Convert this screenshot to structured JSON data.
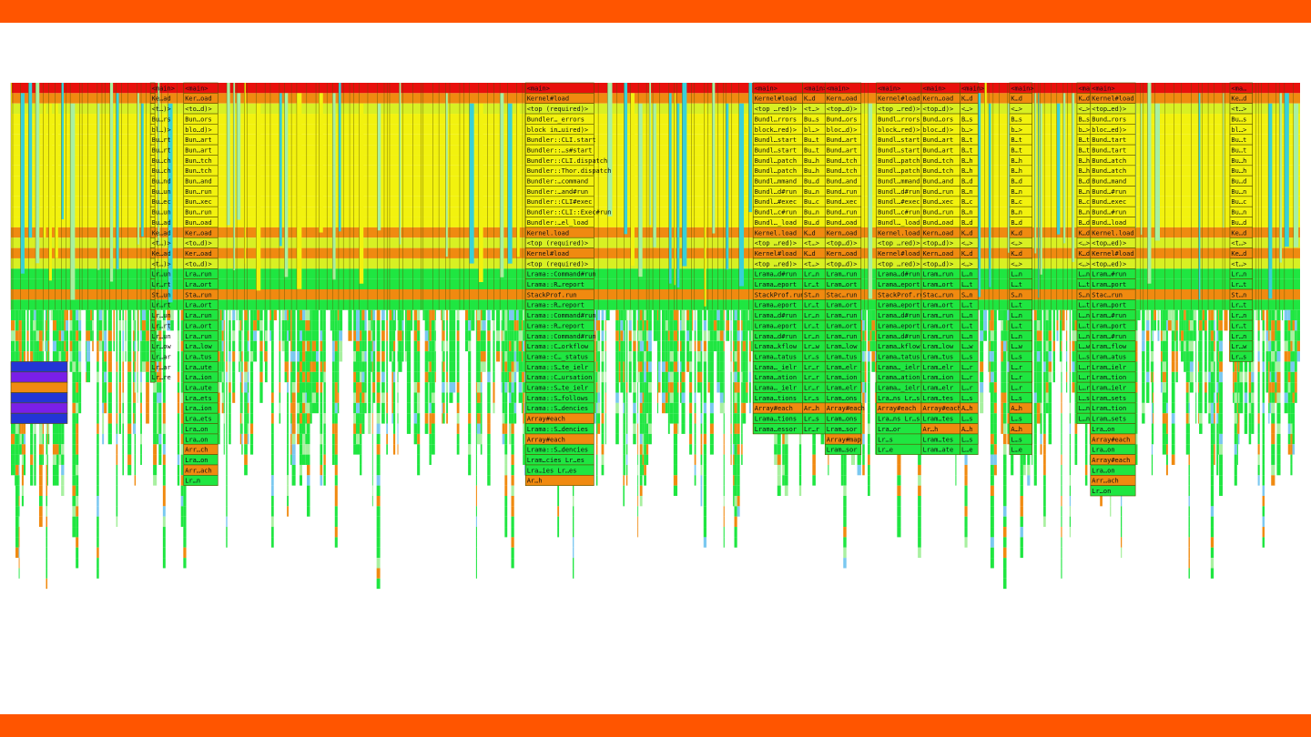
{
  "theme": {
    "accent": "#ff5500",
    "background": "#ffffff",
    "colors": {
      "red": "#e8100c",
      "orange": "#f08a10",
      "yellow": "#f2f20e",
      "lime": "#d8f023",
      "green": "#1fe641",
      "lightgreen": "#a8f0a0",
      "blue": "#2335d6",
      "violet": "#7a1fe8",
      "cyan": "#38d0d8",
      "skyblue": "#7ac8f0",
      "stroke": "#5a5000"
    }
  },
  "chart_data": {
    "type": "flame",
    "orientation": "icicle",
    "row_labels": [
      "<main>",
      "Kernel#load",
      "<top (required)>",
      "Bundler::…errors",
      "block in…uired)>",
      "Bundler::CLI.start",
      "Bundler::…s#start",
      "Bundler::CLI.dispatch",
      "Bundler::Thor.dispatch",
      "Bundler::…command",
      "Bundler::…and#run",
      "Bundler::CLI#exec",
      "Bundler::CLI::Exec#run",
      "Bundler::…el_load",
      "Kernel.load",
      "<top (required)>",
      "Kernel#load",
      "<top (required)>",
      "Lrama::Command#run",
      "Lrama::R…report",
      "StackProf.run",
      "Lrama::R…report",
      "Lrama::Command#run",
      "Lrama::R…report",
      "Lrama::Command#run",
      "Lrama::C…orkflow",
      "Lrama::C…_status",
      "Lrama::S…te_ielr",
      "Lrama::C…ursation",
      "Lrama::S…te_ielr",
      "Lrama::S…follows",
      "Lrama::S…dencies",
      "Array#each",
      "Lrama::S…dencies",
      "Lrama::S…dencies",
      "Lram…cies Lr…es",
      "Lra…ies Lr…es",
      "Ar…h"
    ],
    "segments": [
      {
        "x": [
          0.155,
          0.16
        ],
        "labels": [
          "<main>",
          "Ke…ad",
          "<t…)>",
          "Bu…rs",
          "bl…)>",
          "Bu…rt",
          "Bu…rt",
          "Bu…ch",
          "Bu…ch",
          "Bu…nd",
          "Bu…un",
          "Bu…ec",
          "Bu…un",
          "Bu…ad",
          "Ke…ad",
          "<t…)>",
          "Ke…ad",
          "<t…)>",
          "Lr…un",
          "Lr…rt",
          "St…un",
          "Lr…rt",
          "Lr…un",
          "Lr…rt",
          "Lr…un",
          "Lr…ow",
          "Lr…ar",
          "Lr…ar",
          "Lr…re"
        ]
      },
      {
        "x": [
          0.192,
          0.23
        ],
        "labels": [
          "<main>",
          "Ker…oad",
          "<to…d)>",
          "Bun…ors",
          "blo…d)>",
          "Bun…art",
          "Bun…art",
          "Bun…tch",
          "Bun…tch",
          "Bun…and",
          "Bun…run",
          "Bun…xec",
          "Bun…run",
          "Bun…oad",
          "Ker…oad",
          "<to…d)>",
          "Ker…oad",
          "<to…d)>",
          "Lra…run",
          "Lra…ort",
          "Sta…run",
          "Lra…ort",
          "Lra…run",
          "Lra…ort",
          "Lra…run",
          "Lra…low",
          "Lra…tus",
          "Lra…ute",
          "Lra…ion",
          "Lra…ute",
          "Lra…ets",
          "Lra…ion",
          "Lra…ets",
          "Lra…on",
          "Lra…on",
          "Arr…ch",
          "Lra…on",
          "Arr…ach",
          "Lr…n"
        ]
      },
      {
        "x": [
          0.572,
          0.648
        ],
        "labels": [
          "<main>",
          "Kernel#load",
          "<top (required)>",
          "Bundler…_errors",
          "block in…uired)>",
          "Bundler::CLI.start",
          "Bundler::…s#start",
          "Bundler::CLI.dispatch",
          "Bundler::Thor.dispatch",
          "Bundler:…command",
          "Bundler:…and#run",
          "Bundler::CLI#exec",
          "Bundler::CLI::Exec#run",
          "Bundler:…el_load",
          "Kernel.load",
          "<top (required)>",
          "Kernel#load",
          "<top (required)>",
          "Lrama::Command#run",
          "Lrama::R…report",
          "StackProf.run",
          "Lrama::R…report",
          "Lrama::Command#run",
          "Lrama::R…report",
          "Lrama::Command#run",
          "Lrama::C…orkflow",
          "Lrama::C…_status",
          "Lrama::S…te_ielr",
          "Lrama::C…ursation",
          "Lrama::S…te_ielr",
          "Lrama::S…follows",
          "Lrama::S…dencies",
          "Array#each",
          "Lrama::S…dencies",
          "Array#each",
          "Lrama::S…dencies",
          "Lram…cies Lr…es",
          "Lra…ies Lr…es",
          "Ar…h"
        ]
      },
      {
        "x": [
          0.825,
          0.88
        ],
        "labels": [
          "<main>",
          "Kernel#load",
          "<top …red)>",
          "Bundl…rrors",
          "block…red)>",
          "Bundl…start",
          "Bundl…start",
          "Bundl…patch",
          "Bundl…patch",
          "Bundl…mmand",
          "Bundl…d#run",
          "Bundl…#exec",
          "Bundl…c#run",
          "Bundl…_load",
          "Kernel.load",
          "<top …red)>",
          "Kernel#load",
          "<top …red)>",
          "Lrama…d#run",
          "Lrama…eport",
          "StackProf.run",
          "Lrama…eport",
          "Lrama…d#run",
          "Lrama…eport",
          "Lrama…d#run",
          "Lrama…kflow",
          "Lrama…tatus",
          "Lrama…_ielr",
          "Lrama…ation",
          "Lrama…_ielr",
          "Lrama…tions",
          "Array#each",
          "Lrama…tions",
          "Lrama…essor"
        ]
      },
      {
        "x": [
          0.88,
          0.905
        ],
        "labels": [
          "<main>",
          "K…d",
          "<t…>",
          "Bu…s",
          "bl…>",
          "Bu…t",
          "Bu…t",
          "Bu…h",
          "Bu…h",
          "Bu…d",
          "Bu…n",
          "Bu…c",
          "Bu…n",
          "Bu…d",
          "K…d",
          "<t…>",
          "K…d",
          "<t…>",
          "Lr…n",
          "Lr…t",
          "St…n",
          "Lr…t",
          "Lr…n",
          "Lr…t",
          "Lr…n",
          "Lr…w",
          "Lr…s",
          "Lr…r",
          "Lr…r",
          "Lr…r",
          "Lr…s",
          "Ar…h",
          "Lr…s",
          "Lr…r"
        ]
      },
      {
        "x": [
          0.905,
          0.945
        ],
        "labels": [
          "<main>",
          "Kern…oad",
          "<top…d)>",
          "Bund…ors",
          "bloc…d)>",
          "Bund…art",
          "Bund…art",
          "Bund…tch",
          "Bund…tch",
          "Bund…and",
          "Bund…run",
          "Bund…xec",
          "Bund…run",
          "Bund…oad",
          "Kern…oad",
          "<top…d)>",
          "Kern…oad",
          "<top…d)>",
          "Lram…run",
          "Lram…ort",
          "Stac…run",
          "Lram…ort",
          "Lram…run",
          "Lram…ort",
          "Lram…run",
          "Lram…low",
          "Lram…tus",
          "Lram…elr",
          "Lram…ion",
          "Lram…elr",
          "Lram…ons",
          "Array#each",
          "Lram…ons",
          "Lram…sor",
          "Array#map",
          "Lram…sor"
        ]
      },
      {
        "x": [
          0.962,
          1.012
        ],
        "labels": [
          "<main>",
          "Kernel#load",
          "<top …red)>",
          "Bundl…rrors",
          "block…red)>",
          "Bundl…start",
          "Bundl…start",
          "Bundl…patch",
          "Bundl…patch",
          "Bundl…mmand",
          "Bundl…d#run",
          "Bundl…#exec",
          "Bundl…c#run",
          "Bundl…_load",
          "Kernel.load",
          "<top …red)>",
          "Kernel#load",
          "<top …red)>",
          "Lrama…d#run",
          "Lrama…eport",
          "StackProf.run",
          "Lrama…eport",
          "Lrama…d#run",
          "Lrama…eport",
          "Lrama…d#run",
          "Lrama…kflow",
          "Lrama…tatus",
          "Lrama…_ielr",
          "Lrama…ation",
          "Lrama…_ielr",
          "Lra…ns Lr…s",
          "Array#each",
          "Lra…ns Lr…s",
          "Lra…or",
          "Lr…s",
          "Lr…e"
        ]
      },
      {
        "x": [
          1.012,
          1.055
        ],
        "labels": [
          "<main>",
          "Kern…oad",
          "<top…d)>",
          "Bund…ors",
          "bloc…d)>",
          "Bund…art",
          "Bund…art",
          "Bund…tch",
          "Bund…tch",
          "Bund…and",
          "Bund…run",
          "Bund…xec",
          "Bund…run",
          "Bund…oad",
          "Kern…oad",
          "<top…d)>",
          "Kern…oad",
          "<top…d)>",
          "Lram…run",
          "Lram…ort",
          "Stac…run",
          "Lram…ort",
          "Lram…run",
          "Lram…ort",
          "Lram…run",
          "Lram…low",
          "Lram…tus",
          "Lram…elr",
          "Lram…ion",
          "Lram…elr",
          "Lram…tes",
          "Array#each",
          "Lram…tes",
          "Ar…h",
          "Lram…tes",
          "Lram…ate"
        ]
      },
      {
        "x": [
          1.055,
          1.075
        ],
        "labels": [
          "<main>",
          "K…d",
          "<…>",
          "B…s",
          "b…>",
          "B…t",
          "B…t",
          "B…h",
          "B…h",
          "B…d",
          "B…n",
          "B…c",
          "B…n",
          "B…d",
          "K…d",
          "<…>",
          "K…d",
          "<…>",
          "L…n",
          "L…t",
          "S…n",
          "L…t",
          "L…n",
          "L…t",
          "L…n",
          "L…w",
          "L…s",
          "L…r",
          "L…r",
          "L…r",
          "L…s",
          "A…h",
          "L…s",
          "A…h",
          "L…s",
          "L…e"
        ]
      },
      {
        "x": [
          1.11,
          1.135
        ],
        "labels": [
          "<main>",
          "K…d",
          "<…>",
          "B…s",
          "b…>",
          "B…t",
          "B…t",
          "B…h",
          "B…h",
          "B…d",
          "B…n",
          "B…c",
          "B…n",
          "B…d",
          "K…d",
          "<…>",
          "K…d",
          "<…>",
          "L…n",
          "L…t",
          "S…n",
          "L…t",
          "L…n",
          "L…t",
          "L…n",
          "L…w",
          "L…s",
          "L…r",
          "L…r",
          "L…r",
          "L…s",
          "A…h",
          "L…s",
          "A…h",
          "L…s",
          "L…e"
        ]
      },
      {
        "x": [
          1.185,
          1.2
        ],
        "labels": [
          "<main>",
          "K…d",
          "<…>",
          "B…s",
          "b…>",
          "B…t",
          "B…t",
          "B…h",
          "B…h",
          "B…d",
          "B…n",
          "B…c",
          "B…n",
          "B…d",
          "K…d",
          "<…>",
          "K…d",
          "<…>",
          "L…n",
          "L…t",
          "S…n",
          "L…t",
          "L…n",
          "L…t",
          "L…n",
          "L…w",
          "L…s",
          "L…r",
          "L…r",
          "L…r",
          "L…s",
          "L…n",
          "L…n"
        ]
      },
      {
        "x": [
          1.2,
          1.25
        ],
        "labels": [
          "<main>",
          "Kernel#load",
          "<top…ed)>",
          "Bund…rors",
          "bloc…ed)>",
          "Bund…tart",
          "Bund…tart",
          "Bund…atch",
          "Bund…atch",
          "Bund…mand",
          "Bund…#run",
          "Bund…exec",
          "Bund…#run",
          "Bund…load",
          "Kernel.load",
          "<top…ed)>",
          "Kernel#load",
          "<top…ed)>",
          "Lram…#run",
          "Lram…port",
          "Stac…run",
          "Lram…port",
          "Lram…#run",
          "Lram…port",
          "Lram…#run",
          "Lram…flow",
          "Lram…atus",
          "Lram…ielr",
          "Lram…tion",
          "Lram…ielr",
          "Lram…sets",
          "Lram…tion",
          "Lram…sets",
          "Lra…on",
          "Array#each",
          "Lra…on",
          "Array#each",
          "Lra…on",
          "Arr…ach",
          "Lr…on"
        ]
      },
      {
        "x": [
          1.355,
          1.38
        ],
        "labels": [
          "<ma…",
          "Ke…d",
          "<t…>",
          "Bu…s",
          "bl…>",
          "Bu…t",
          "Bu…t",
          "Bu…h",
          "Bu…h",
          "Bu…d",
          "Bu…n",
          "Bu…c",
          "Bu…n",
          "Bu…d",
          "Ke…d",
          "<t…>",
          "Ke…d",
          "<t…>",
          "Lr…n",
          "Lr…t",
          "St…n",
          "Lr…t",
          "Lr…n",
          "Lr…t",
          "Lr…n",
          "Lr…w",
          "Lr…s"
        ]
      }
    ]
  }
}
